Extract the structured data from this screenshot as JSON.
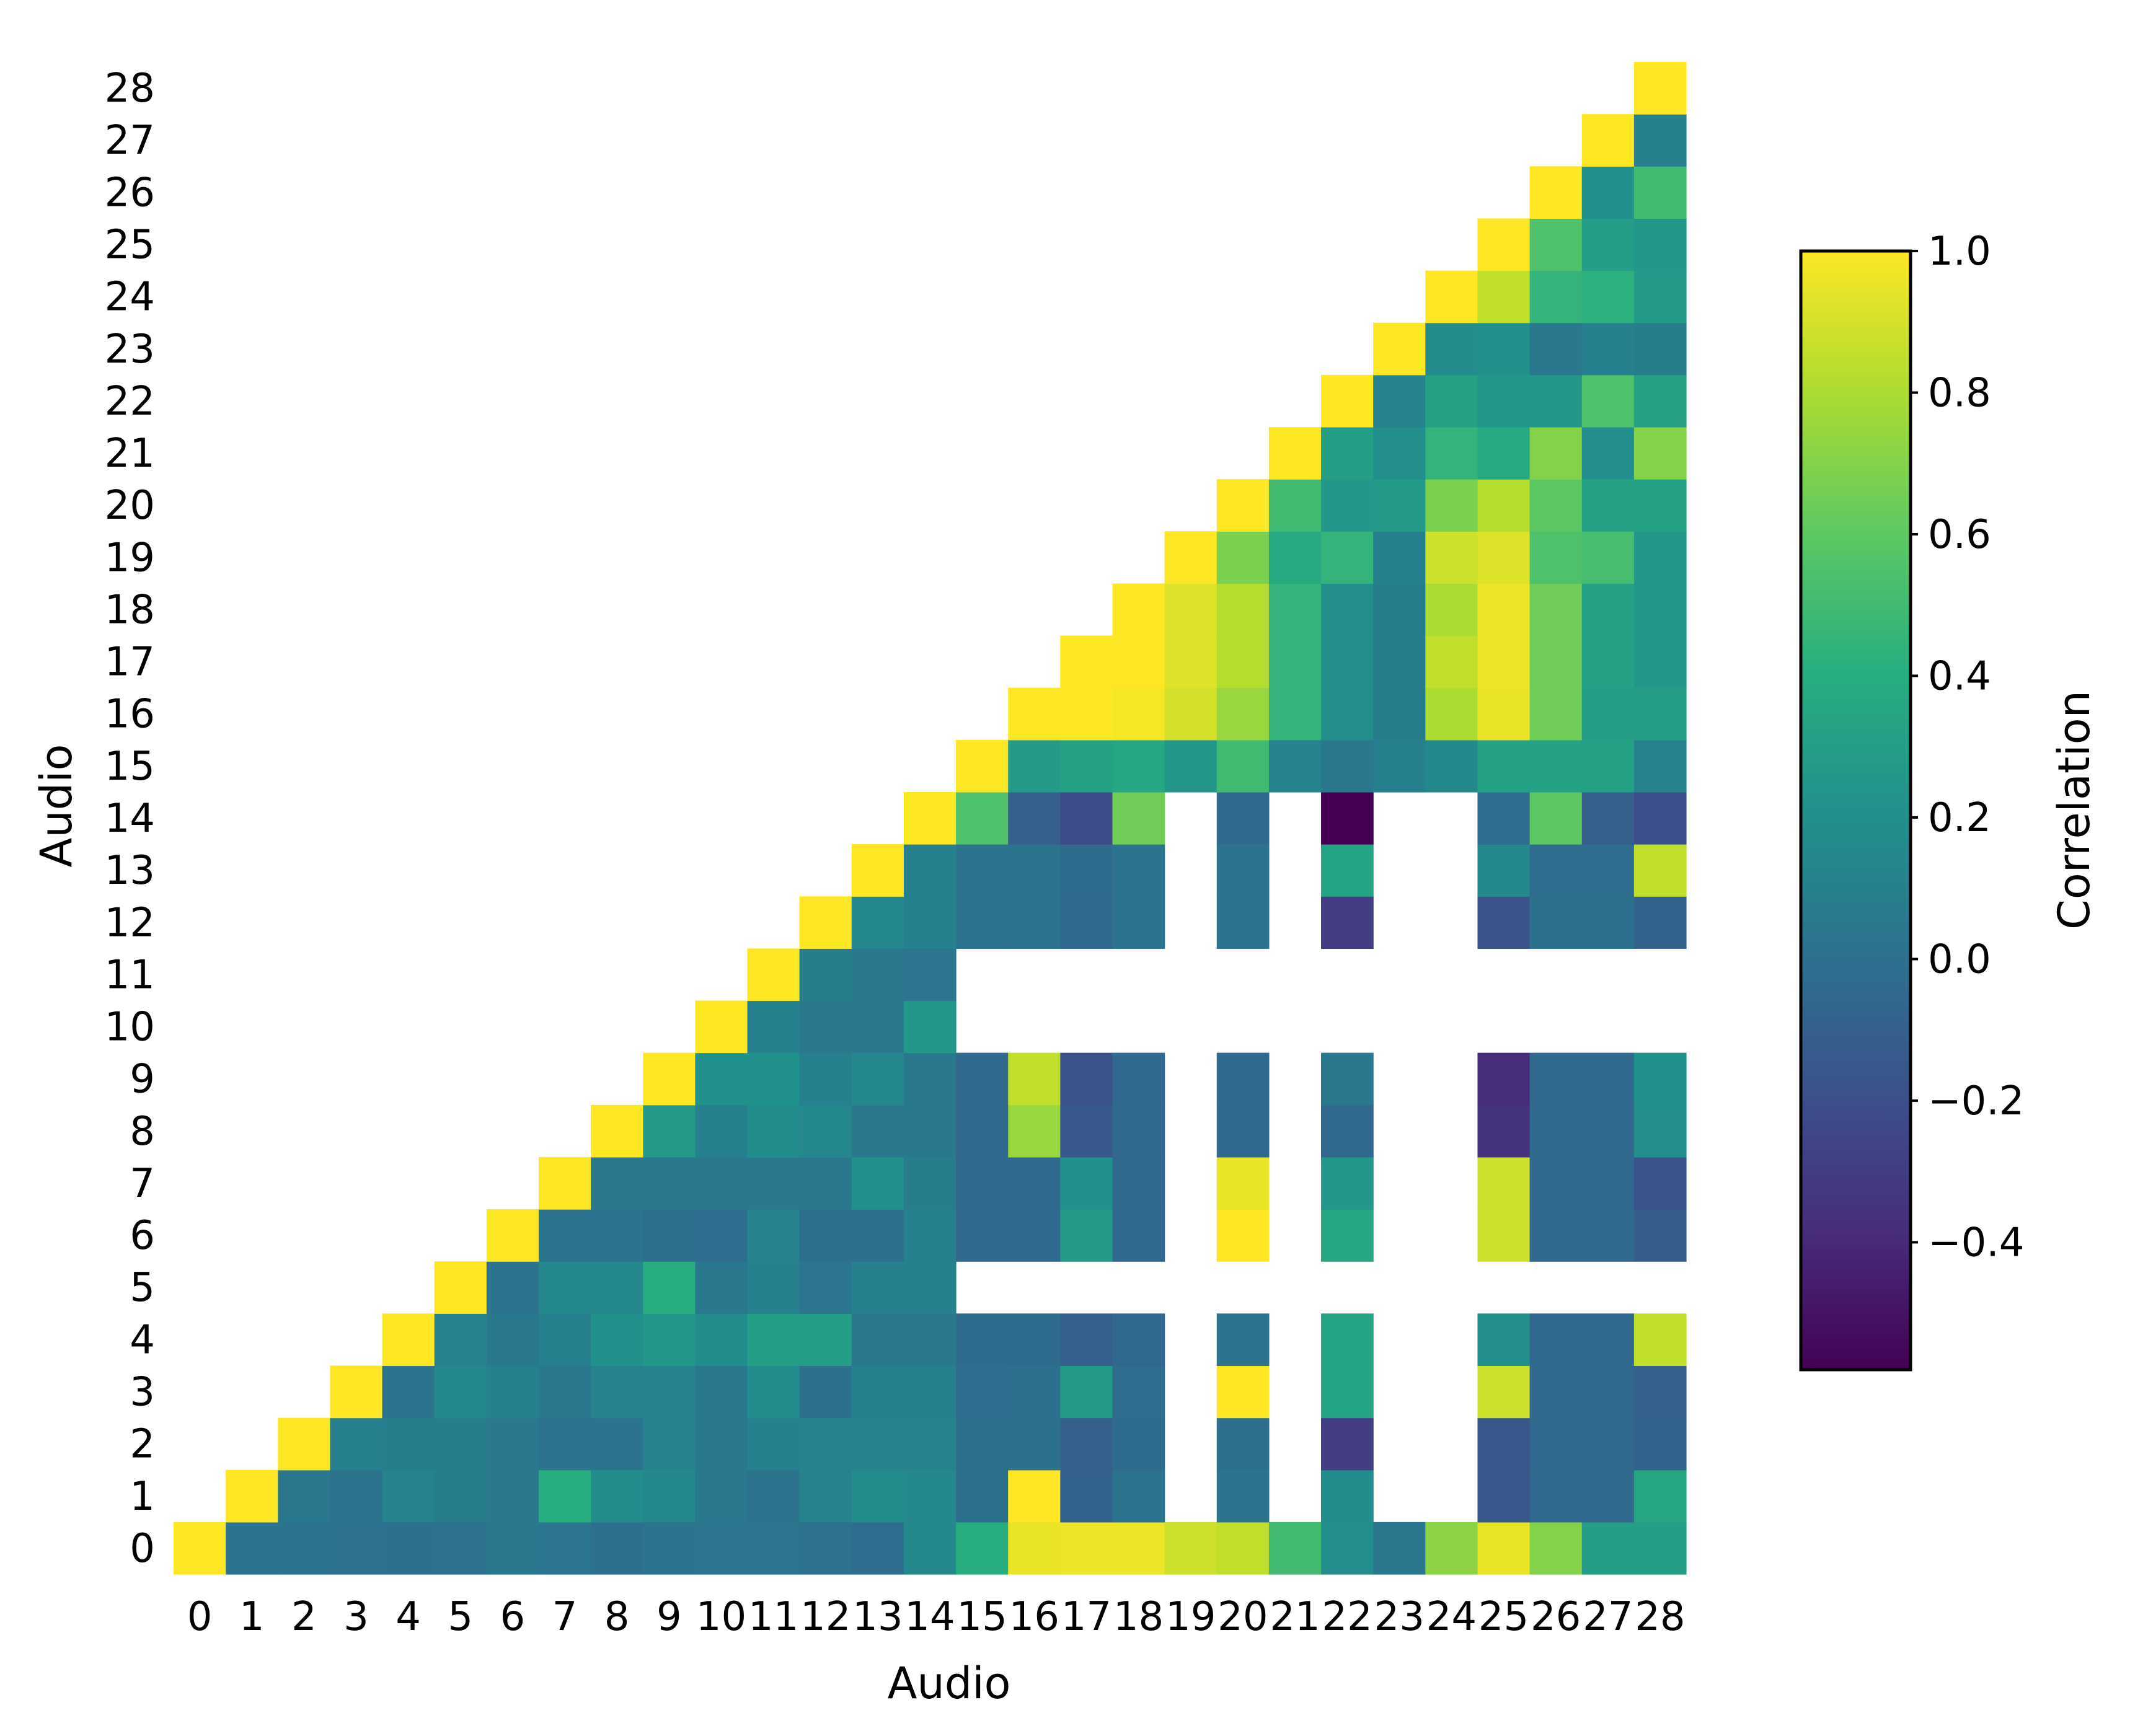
{
  "chart_data": {
    "type": "heatmap",
    "xlabel": "Audio",
    "ylabel": "Audio",
    "x_ticks": [
      "0",
      "1",
      "2",
      "3",
      "4",
      "5",
      "6",
      "7",
      "8",
      "9",
      "10",
      "11",
      "12",
      "13",
      "14",
      "15",
      "16",
      "17",
      "18",
      "19",
      "20",
      "21",
      "22",
      "23",
      "24",
      "25",
      "26",
      "27",
      "28"
    ],
    "y_ticks": [
      "0",
      "1",
      "2",
      "3",
      "4",
      "5",
      "6",
      "7",
      "8",
      "9",
      "10",
      "11",
      "12",
      "13",
      "14",
      "15",
      "16",
      "17",
      "18",
      "19",
      "20",
      "21",
      "22",
      "23",
      "24",
      "25",
      "26",
      "27",
      "28"
    ],
    "colorbar": {
      "label": "Correlation",
      "colormap": "viridis",
      "vmin": -0.58,
      "vmax": 1.0,
      "ticks": [
        1.0,
        0.8,
        0.6,
        0.4,
        0.2,
        0.0,
        -0.2,
        -0.4
      ],
      "tick_labels": [
        "1.0",
        "0.8",
        "0.6",
        "0.4",
        "0.2",
        "0.0",
        "−0.2",
        "−0.4"
      ]
    },
    "note_rows": "rows[i][j] = correlation between audio i and audio j, for j >= i; null = not shown (masked)",
    "rows": [
      [
        1.0,
        0.02,
        0.02,
        0.01,
        0.0,
        0.01,
        0.05,
        0.03,
        0.0,
        0.02,
        0.03,
        0.03,
        0.01,
        -0.02,
        0.15,
        0.4,
        0.95,
        0.96,
        0.96,
        0.88,
        0.85,
        0.5,
        0.2,
        0.05,
        0.72,
        0.95,
        0.7,
        0.3,
        0.3
      ],
      [
        null,
        1.0,
        0.05,
        0.02,
        0.12,
        0.08,
        0.05,
        0.4,
        0.18,
        0.15,
        0.05,
        0.02,
        0.12,
        0.18,
        0.15,
        0.0,
        1.0,
        -0.08,
        0.02,
        null,
        0.02,
        null,
        0.18,
        null,
        null,
        -0.15,
        -0.05,
        -0.05,
        0.35
      ],
      [
        null,
        null,
        1.0,
        0.1,
        0.08,
        0.08,
        0.05,
        0.02,
        0.02,
        0.12,
        0.05,
        0.1,
        0.12,
        0.12,
        0.12,
        0.0,
        0.0,
        -0.1,
        -0.03,
        null,
        0.0,
        null,
        -0.3,
        null,
        null,
        -0.15,
        -0.05,
        -0.05,
        -0.08
      ],
      [
        null,
        null,
        null,
        1.0,
        0.02,
        0.15,
        0.1,
        0.05,
        0.12,
        0.12,
        0.05,
        0.18,
        0.0,
        0.1,
        0.1,
        -0.02,
        0.0,
        0.28,
        -0.02,
        null,
        1.0,
        null,
        0.33,
        null,
        null,
        0.88,
        -0.05,
        -0.05,
        -0.1
      ],
      [
        null,
        null,
        null,
        null,
        1.0,
        0.12,
        0.05,
        0.1,
        0.22,
        0.25,
        0.18,
        0.3,
        0.3,
        0.05,
        0.05,
        -0.03,
        -0.03,
        -0.1,
        -0.05,
        null,
        0.02,
        null,
        0.33,
        null,
        null,
        0.2,
        -0.05,
        -0.05,
        0.85
      ],
      [
        null,
        null,
        null,
        null,
        null,
        1.0,
        0.02,
        0.15,
        0.15,
        0.4,
        0.05,
        0.1,
        0.03,
        0.1,
        0.1,
        null,
        null,
        null,
        null,
        null,
        null,
        null,
        null,
        null,
        null,
        null,
        null,
        null,
        null
      ],
      [
        null,
        null,
        null,
        null,
        null,
        null,
        1.0,
        0.02,
        0.02,
        0.0,
        -0.02,
        0.12,
        0.0,
        0.0,
        0.1,
        -0.05,
        -0.05,
        0.28,
        -0.05,
        null,
        1.0,
        null,
        0.35,
        null,
        null,
        0.88,
        -0.05,
        -0.05,
        -0.12
      ],
      [
        null,
        null,
        null,
        null,
        null,
        null,
        null,
        1.0,
        0.05,
        0.05,
        0.05,
        0.05,
        0.05,
        0.22,
        0.08,
        -0.05,
        -0.05,
        0.22,
        -0.05,
        null,
        0.95,
        null,
        0.25,
        null,
        null,
        0.88,
        -0.05,
        -0.05,
        -0.18
      ],
      [
        null,
        null,
        null,
        null,
        null,
        null,
        null,
        null,
        1.0,
        0.28,
        0.1,
        0.18,
        0.15,
        0.05,
        0.05,
        -0.05,
        0.75,
        -0.15,
        -0.05,
        null,
        -0.05,
        null,
        -0.05,
        null,
        null,
        -0.35,
        -0.05,
        -0.05,
        0.2
      ],
      [
        null,
        null,
        null,
        null,
        null,
        null,
        null,
        null,
        null,
        1.0,
        0.22,
        0.22,
        0.1,
        0.15,
        0.05,
        -0.05,
        0.85,
        -0.18,
        -0.05,
        null,
        -0.05,
        null,
        0.05,
        null,
        null,
        -0.38,
        -0.05,
        -0.05,
        0.22
      ],
      [
        null,
        null,
        null,
        null,
        null,
        null,
        null,
        null,
        null,
        null,
        1.0,
        0.1,
        0.05,
        0.05,
        0.25,
        null,
        null,
        null,
        null,
        null,
        null,
        null,
        null,
        null,
        null,
        null,
        null,
        null,
        null
      ],
      [
        null,
        null,
        null,
        null,
        null,
        null,
        null,
        null,
        null,
        null,
        null,
        1.0,
        0.08,
        0.05,
        0.03,
        null,
        null,
        null,
        null,
        null,
        null,
        null,
        null,
        null,
        null,
        null,
        null,
        null,
        null
      ],
      [
        null,
        null,
        null,
        null,
        null,
        null,
        null,
        null,
        null,
        null,
        null,
        null,
        1.0,
        0.15,
        0.1,
        0.02,
        0.02,
        -0.05,
        0.02,
        null,
        0.02,
        null,
        -0.3,
        null,
        null,
        -0.18,
        0.0,
        0.0,
        -0.08
      ],
      [
        null,
        null,
        null,
        null,
        null,
        null,
        null,
        null,
        null,
        null,
        null,
        null,
        null,
        1.0,
        0.1,
        0.02,
        0.02,
        -0.03,
        0.02,
        null,
        0.02,
        null,
        0.33,
        null,
        null,
        0.15,
        -0.02,
        -0.02,
        0.85
      ],
      [
        null,
        null,
        null,
        null,
        null,
        null,
        null,
        null,
        null,
        null,
        null,
        null,
        null,
        null,
        1.0,
        0.55,
        -0.1,
        -0.22,
        0.65,
        null,
        -0.05,
        null,
        -0.58,
        null,
        null,
        -0.02,
        0.6,
        -0.1,
        -0.2
      ],
      [
        null,
        null,
        null,
        null,
        null,
        null,
        null,
        null,
        null,
        null,
        null,
        null,
        null,
        null,
        null,
        1.0,
        0.28,
        0.32,
        0.35,
        0.25,
        0.5,
        0.12,
        0.05,
        0.1,
        0.15,
        0.32,
        0.32,
        0.32,
        0.12
      ],
      [
        null,
        null,
        null,
        null,
        null,
        null,
        null,
        null,
        null,
        null,
        null,
        null,
        null,
        null,
        null,
        null,
        1.0,
        1.0,
        0.98,
        0.9,
        0.75,
        0.45,
        0.2,
        0.08,
        0.8,
        0.95,
        0.65,
        0.3,
        0.3
      ],
      [
        null,
        null,
        null,
        null,
        null,
        null,
        null,
        null,
        null,
        null,
        null,
        null,
        null,
        null,
        null,
        null,
        null,
        1.0,
        1.0,
        0.92,
        0.82,
        0.45,
        0.2,
        0.08,
        0.85,
        0.96,
        0.65,
        0.32,
        0.25
      ],
      [
        null,
        null,
        null,
        null,
        null,
        null,
        null,
        null,
        null,
        null,
        null,
        null,
        null,
        null,
        null,
        null,
        null,
        null,
        1.0,
        0.92,
        0.82,
        0.45,
        0.2,
        0.08,
        0.8,
        0.96,
        0.65,
        0.32,
        0.25
      ],
      [
        null,
        null,
        null,
        null,
        null,
        null,
        null,
        null,
        null,
        null,
        null,
        null,
        null,
        null,
        null,
        null,
        null,
        null,
        null,
        1.0,
        0.68,
        0.38,
        0.45,
        0.1,
        0.88,
        0.92,
        0.55,
        0.52,
        0.25
      ],
      [
        null,
        null,
        null,
        null,
        null,
        null,
        null,
        null,
        null,
        null,
        null,
        null,
        null,
        null,
        null,
        null,
        null,
        null,
        null,
        null,
        1.0,
        0.5,
        0.25,
        0.28,
        0.68,
        0.82,
        0.6,
        0.32,
        0.32
      ],
      [
        null,
        null,
        null,
        null,
        null,
        null,
        null,
        null,
        null,
        null,
        null,
        null,
        null,
        null,
        null,
        null,
        null,
        null,
        null,
        null,
        null,
        1.0,
        0.3,
        0.2,
        0.45,
        0.38,
        0.7,
        0.2,
        0.7
      ],
      [
        null,
        null,
        null,
        null,
        null,
        null,
        null,
        null,
        null,
        null,
        null,
        null,
        null,
        null,
        null,
        null,
        null,
        null,
        null,
        null,
        null,
        null,
        1.0,
        0.12,
        0.32,
        0.25,
        0.25,
        0.55,
        0.32
      ],
      [
        null,
        null,
        null,
        null,
        null,
        null,
        null,
        null,
        null,
        null,
        null,
        null,
        null,
        null,
        null,
        null,
        null,
        null,
        null,
        null,
        null,
        null,
        null,
        1.0,
        0.18,
        0.22,
        0.05,
        0.1,
        0.08
      ],
      [
        null,
        null,
        null,
        null,
        null,
        null,
        null,
        null,
        null,
        null,
        null,
        null,
        null,
        null,
        null,
        null,
        null,
        null,
        null,
        null,
        null,
        null,
        null,
        null,
        1.0,
        0.85,
        0.45,
        0.42,
        0.28
      ],
      [
        null,
        null,
        null,
        null,
        null,
        null,
        null,
        null,
        null,
        null,
        null,
        null,
        null,
        null,
        null,
        null,
        null,
        null,
        null,
        null,
        null,
        null,
        null,
        null,
        null,
        1.0,
        0.55,
        0.3,
        0.25
      ],
      [
        null,
        null,
        null,
        null,
        null,
        null,
        null,
        null,
        null,
        null,
        null,
        null,
        null,
        null,
        null,
        null,
        null,
        null,
        null,
        null,
        null,
        null,
        null,
        null,
        null,
        null,
        1.0,
        0.22,
        0.5
      ],
      [
        null,
        null,
        null,
        null,
        null,
        null,
        null,
        null,
        null,
        null,
        null,
        null,
        null,
        null,
        null,
        null,
        null,
        null,
        null,
        null,
        null,
        null,
        null,
        null,
        null,
        null,
        null,
        1.0,
        0.1
      ],
      [
        null,
        null,
        null,
        null,
        null,
        null,
        null,
        null,
        null,
        null,
        null,
        null,
        null,
        null,
        null,
        null,
        null,
        null,
        null,
        null,
        null,
        null,
        null,
        null,
        null,
        null,
        null,
        null,
        1.0
      ]
    ]
  }
}
